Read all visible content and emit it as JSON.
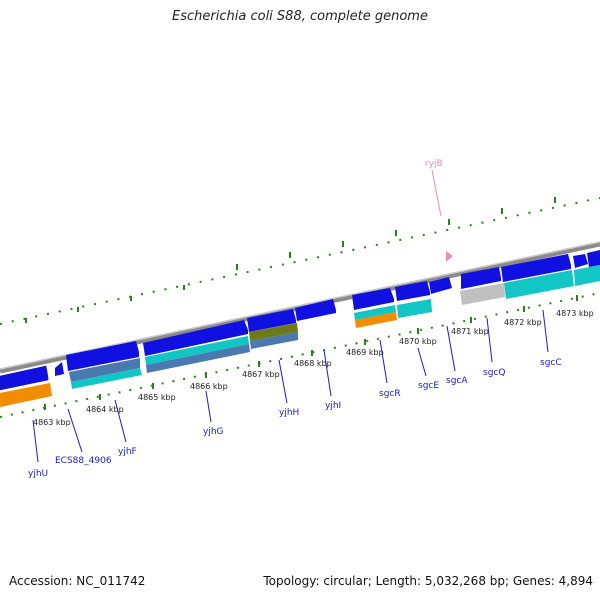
{
  "title": "Escherichia coli S88, complete genome",
  "accession": "Accession: NC_011742",
  "topology": "Topology: circular; Length: 5,032,268 bp; Genes: 4,894",
  "colors": {
    "backbone": "#8a8a8a",
    "cds": "#1010e0",
    "ticks": "#2e7d1e",
    "label": "#1a1acc",
    "rna": "#e78fb8"
  },
  "kbp_labels": [
    "4863 kbp",
    "4864 kbp",
    "4865 kbp",
    "4866 kbp",
    "4867 kbp",
    "4868 kbp",
    "4869 kbp",
    "4870 kbp",
    "4871 kbp",
    "4872 kbp",
    "4873 kbp"
  ],
  "gene_labels": [
    "yjhU",
    "ECS88_4906",
    "yjhF",
    "yjhG",
    "yjhH",
    "yjhI",
    "sgcR",
    "sgcE",
    "sgcA",
    "sgcQ",
    "sgcC"
  ],
  "rna_labels": [
    "ryjB"
  ]
}
